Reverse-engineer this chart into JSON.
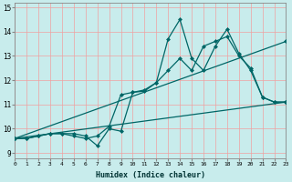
{
  "xlabel": "Humidex (Indice chaleur)",
  "bg_color": "#c8ecec",
  "grid_color": "#f0a0a0",
  "line_color": "#006666",
  "xlim": [
    0,
    23
  ],
  "ylim": [
    8.8,
    15.2
  ],
  "xticks": [
    0,
    1,
    2,
    3,
    4,
    5,
    6,
    7,
    8,
    9,
    10,
    11,
    12,
    13,
    14,
    15,
    16,
    17,
    18,
    19,
    20,
    21,
    22,
    23
  ],
  "yticks": [
    9,
    10,
    11,
    12,
    13,
    14,
    15
  ],
  "line1_x": [
    0,
    1,
    2,
    3,
    4,
    5,
    6,
    7,
    8,
    9,
    10,
    11,
    12,
    13,
    14,
    15,
    16,
    17,
    18,
    19,
    20,
    21,
    22,
    23
  ],
  "line1_y": [
    9.6,
    9.6,
    9.7,
    9.8,
    9.8,
    9.8,
    9.7,
    9.3,
    10.0,
    9.9,
    11.5,
    11.55,
    11.9,
    13.7,
    14.5,
    12.9,
    12.4,
    13.4,
    14.1,
    13.1,
    12.4,
    11.3,
    11.1,
    11.1
  ],
  "line2_x": [
    0,
    1,
    2,
    3,
    4,
    5,
    6,
    7,
    8,
    9,
    10,
    11,
    12,
    13,
    14,
    15,
    16,
    17,
    18,
    19,
    20,
    21,
    22,
    23
  ],
  "line2_y": [
    9.6,
    9.6,
    9.7,
    9.8,
    9.8,
    9.7,
    9.6,
    9.7,
    10.1,
    11.4,
    11.5,
    11.6,
    11.9,
    12.4,
    12.9,
    12.4,
    13.4,
    13.6,
    13.8,
    13.0,
    12.5,
    11.3,
    11.1,
    11.1
  ],
  "line3_x": [
    0,
    23
  ],
  "line3_y": [
    9.6,
    13.6
  ],
  "line4_x": [
    0,
    23
  ],
  "line4_y": [
    9.6,
    11.1
  ]
}
